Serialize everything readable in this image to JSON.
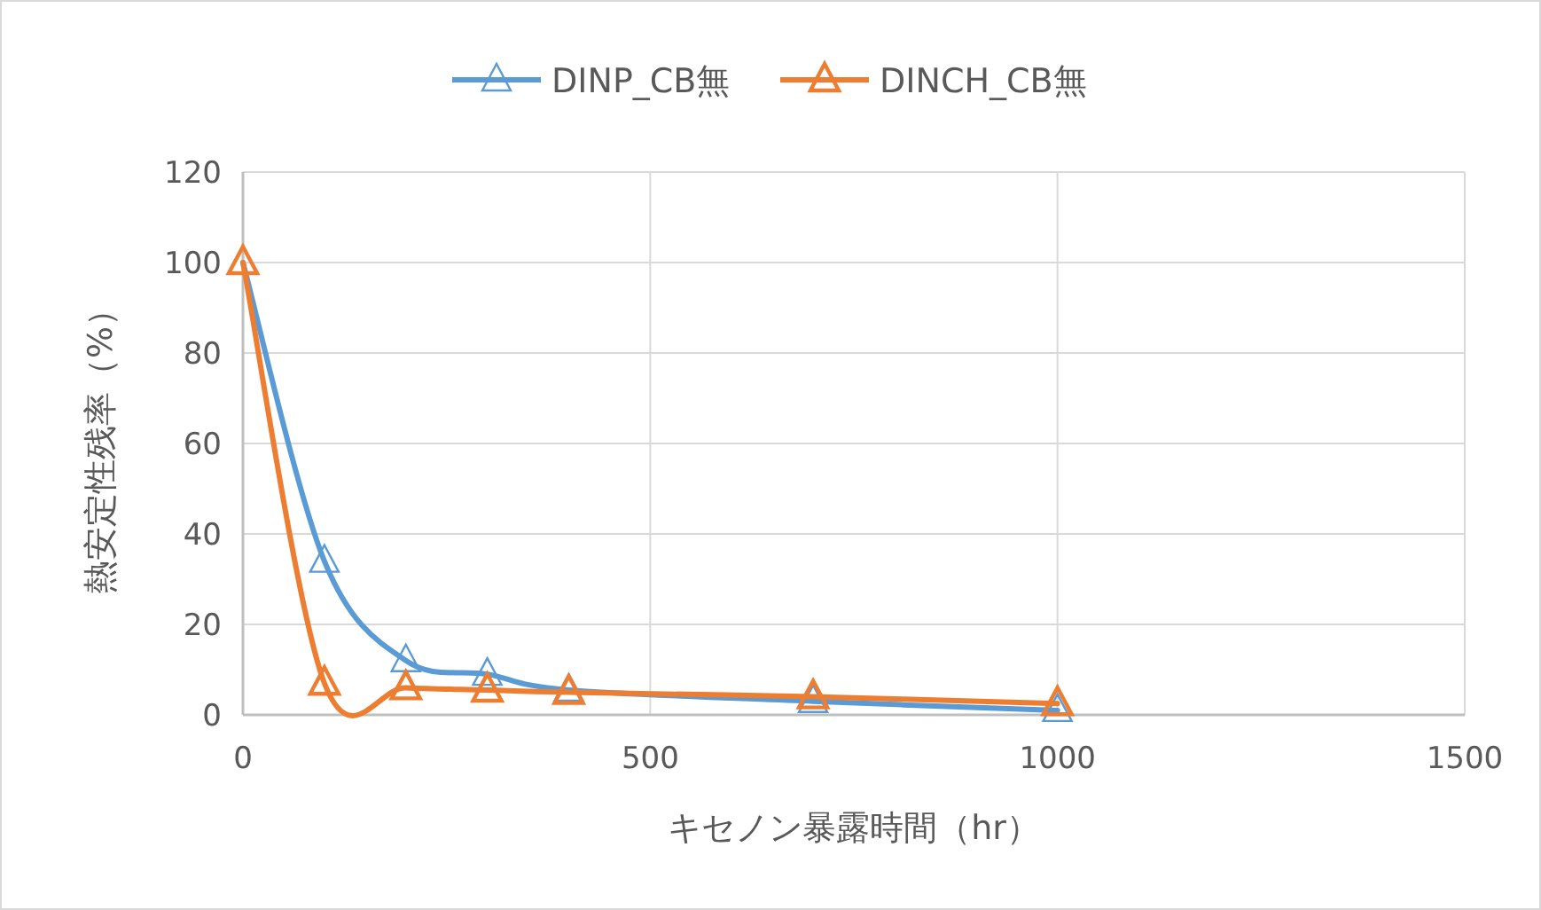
{
  "chart_data": {
    "type": "line",
    "xlabel": "キセノン暴露時間（hr）",
    "ylabel": "熱安定性残率（%）",
    "x": [
      0,
      100,
      200,
      300,
      400,
      700,
      1000
    ],
    "series": [
      {
        "name": "DINP_CB無",
        "color": "#5b9bd5",
        "values": [
          100,
          34,
          12,
          9,
          5.5,
          3,
          1
        ]
      },
      {
        "name": "DINCH_CB無",
        "color": "#ed7d31",
        "values": [
          100,
          7,
          6,
          5.5,
          5,
          4,
          2.5
        ]
      }
    ],
    "xlim": [
      0,
      1500
    ],
    "xticks": [
      0,
      500,
      1000,
      1500
    ],
    "ylim": [
      0,
      120
    ],
    "yticks": [
      0,
      20,
      40,
      60,
      80,
      100,
      120
    ],
    "grid": true,
    "legend": "top",
    "marker": "triangle"
  }
}
